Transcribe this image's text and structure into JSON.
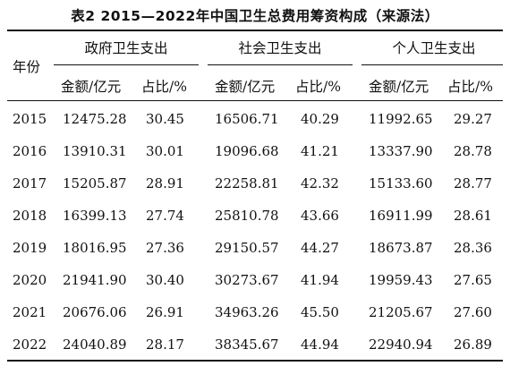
{
  "table": {
    "title": "表2 2015—2022年中国卫生总费用筹资构成（来源法）",
    "year_header": "年份",
    "groups": [
      {
        "label": "政府卫生支出",
        "sub": [
          "金额/亿元",
          "占比/%"
        ]
      },
      {
        "label": "社会卫生支出",
        "sub": [
          "金额/亿元",
          "占比/%"
        ]
      },
      {
        "label": "个人卫生支出",
        "sub": [
          "金额/亿元",
          "占比/%"
        ]
      }
    ],
    "rows": [
      {
        "year": "2015",
        "gov_amount": "12475.28",
        "gov_pct": "30.45",
        "soc_amount": "16506.71",
        "soc_pct": "40.29",
        "ind_amount": "11992.65",
        "ind_pct": "29.27"
      },
      {
        "year": "2016",
        "gov_amount": "13910.31",
        "gov_pct": "30.01",
        "soc_amount": "19096.68",
        "soc_pct": "41.21",
        "ind_amount": "13337.90",
        "ind_pct": "28.78"
      },
      {
        "year": "2017",
        "gov_amount": "15205.87",
        "gov_pct": "28.91",
        "soc_amount": "22258.81",
        "soc_pct": "42.32",
        "ind_amount": "15133.60",
        "ind_pct": "28.77"
      },
      {
        "year": "2018",
        "gov_amount": "16399.13",
        "gov_pct": "27.74",
        "soc_amount": "25810.78",
        "soc_pct": "43.66",
        "ind_amount": "16911.99",
        "ind_pct": "28.61"
      },
      {
        "year": "2019",
        "gov_amount": "18016.95",
        "gov_pct": "27.36",
        "soc_amount": "29150.57",
        "soc_pct": "44.27",
        "ind_amount": "18673.87",
        "ind_pct": "28.36"
      },
      {
        "year": "2020",
        "gov_amount": "21941.90",
        "gov_pct": "30.40",
        "soc_amount": "30273.67",
        "soc_pct": "41.94",
        "ind_amount": "19959.43",
        "ind_pct": "27.65"
      },
      {
        "year": "2021",
        "gov_amount": "20676.06",
        "gov_pct": "26.91",
        "soc_amount": "34963.26",
        "soc_pct": "45.50",
        "ind_amount": "21205.67",
        "ind_pct": "27.60"
      },
      {
        "year": "2022",
        "gov_amount": "24040.89",
        "gov_pct": "28.17",
        "soc_amount": "38345.67",
        "soc_pct": "44.94",
        "ind_amount": "22940.94",
        "ind_pct": "26.89"
      }
    ]
  }
}
